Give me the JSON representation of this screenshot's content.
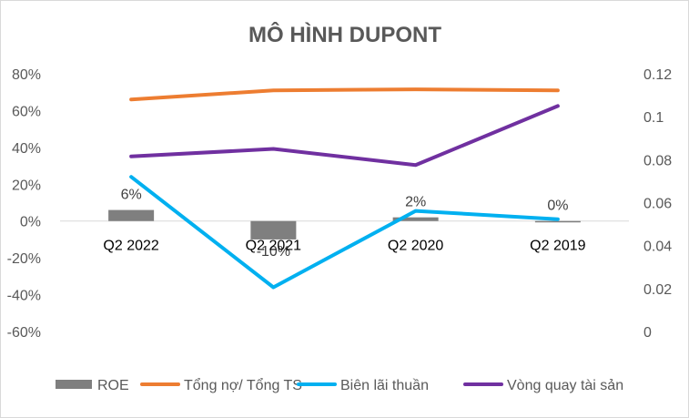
{
  "chart_data": {
    "type": "bar+line",
    "title": "MÔ HÌNH DUPONT",
    "categories": [
      "Q2 2022",
      "Q2 2021",
      "Q2 2020",
      "Q2 2019"
    ],
    "left_axis": {
      "ylim": [
        -0.6,
        0.8
      ],
      "ticks": [
        -0.6,
        -0.4,
        -0.2,
        0,
        0.2,
        0.4,
        0.6,
        0.8
      ],
      "tick_labels": [
        "-60%",
        "-40%",
        "-20%",
        "0%",
        "20%",
        "40%",
        "60%",
        "80%"
      ]
    },
    "right_axis": {
      "ylim": [
        0,
        0.12
      ],
      "ticks": [
        0,
        0.02,
        0.04,
        0.06,
        0.08,
        0.1,
        0.12
      ],
      "tick_labels": [
        "0",
        "0.02",
        "0.04",
        "0.06",
        "0.08",
        "0.1",
        "0.12"
      ]
    },
    "grid": false,
    "legend_position": "bottom",
    "series": [
      {
        "name": "ROE",
        "type": "bar",
        "axis": "left",
        "color": "#7f7f7f",
        "values": [
          0.06,
          -0.1,
          0.02,
          0.0
        ],
        "data_labels": [
          "6%",
          "-10%",
          "2%",
          "0%"
        ]
      },
      {
        "name": "Tổng nợ/ Tổng TS",
        "type": "line",
        "axis": "left",
        "color": "#ed7d31",
        "values": [
          0.66,
          0.71,
          0.715,
          0.71
        ]
      },
      {
        "name": "Biên lãi thuần",
        "type": "line",
        "axis": "left",
        "color": "#00b0f0",
        "values": [
          0.24,
          -0.36,
          0.055,
          0.01
        ]
      },
      {
        "name": "Vòng quay tài sản",
        "type": "line",
        "axis": "right",
        "color": "#7030a0",
        "values": [
          0.0815,
          0.085,
          0.0775,
          0.105
        ]
      }
    ]
  }
}
